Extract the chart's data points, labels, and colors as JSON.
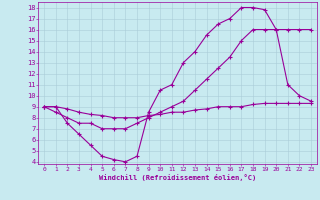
{
  "xlabel": "Windchill (Refroidissement éolien,°C)",
  "bg_color": "#c8eaf0",
  "grid_color": "#aaccd8",
  "line_color": "#990099",
  "xlim": [
    -0.5,
    23.5
  ],
  "ylim": [
    3.8,
    18.5
  ],
  "xticks": [
    0,
    1,
    2,
    3,
    4,
    5,
    6,
    7,
    8,
    9,
    10,
    11,
    12,
    13,
    14,
    15,
    16,
    17,
    18,
    19,
    20,
    21,
    22,
    23
  ],
  "yticks": [
    4,
    5,
    6,
    7,
    8,
    9,
    10,
    11,
    12,
    13,
    14,
    15,
    16,
    17,
    18
  ],
  "series1_x": [
    0,
    1,
    2,
    3,
    4,
    5,
    6,
    7,
    8,
    9,
    10,
    11,
    12,
    13,
    14,
    15,
    16,
    17,
    18,
    19,
    20,
    21,
    22,
    23
  ],
  "series1_y": [
    9,
    9,
    7.5,
    6.5,
    5.5,
    4.5,
    4.2,
    4,
    4.5,
    8.5,
    10.5,
    11,
    13,
    14,
    15.5,
    16.5,
    17,
    18,
    18,
    17.8,
    16,
    11,
    10,
    9.5
  ],
  "series2_x": [
    0,
    1,
    2,
    3,
    4,
    5,
    6,
    7,
    8,
    9,
    10,
    11,
    12,
    13,
    14,
    15,
    16,
    17,
    18,
    19,
    20,
    21,
    22,
    23
  ],
  "series2_y": [
    9,
    8.5,
    8,
    7.5,
    7.5,
    7,
    7,
    7,
    7.5,
    8,
    8.5,
    9,
    9.5,
    10.5,
    11.5,
    12.5,
    13.5,
    15,
    16,
    16,
    16,
    16,
    16,
    16
  ],
  "series3_x": [
    0,
    1,
    2,
    3,
    4,
    5,
    6,
    7,
    8,
    9,
    10,
    11,
    12,
    13,
    14,
    15,
    16,
    17,
    18,
    19,
    20,
    21,
    22,
    23
  ],
  "series3_y": [
    9,
    9,
    8.8,
    8.5,
    8.3,
    8.2,
    8,
    8,
    8,
    8.2,
    8.3,
    8.5,
    8.5,
    8.7,
    8.8,
    9,
    9,
    9,
    9.2,
    9.3,
    9.3,
    9.3,
    9.3,
    9.3
  ]
}
